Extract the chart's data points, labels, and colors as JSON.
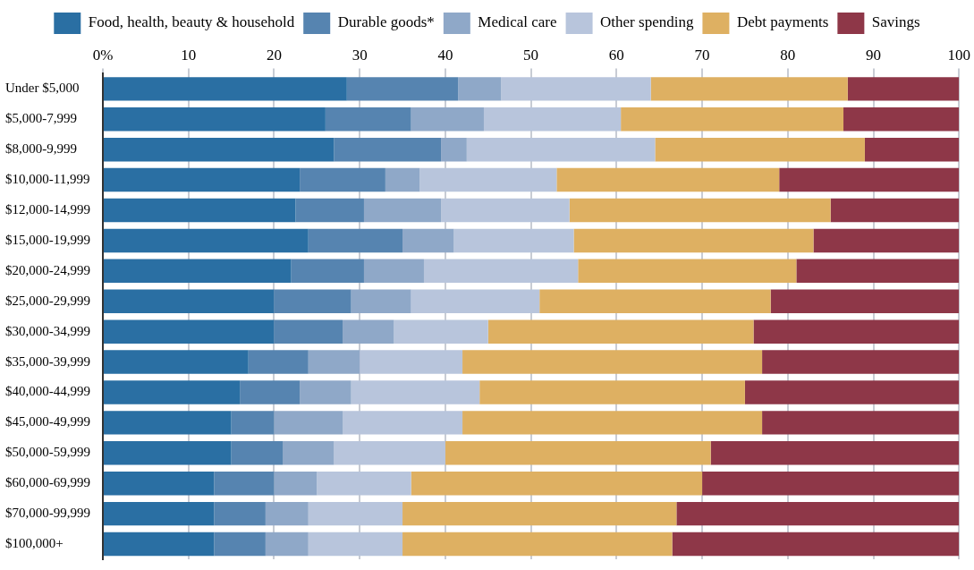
{
  "chart_data": {
    "type": "bar",
    "orientation": "horizontal",
    "stacked": true,
    "categories": [
      "Under $5,000",
      "$5,000-7,999",
      "$8,000-9,999",
      "$10,000-11,999",
      "$12,000-14,999",
      "$15,000-19,999",
      "$20,000-24,999",
      "$25,000-29,999",
      "$30,000-34,999",
      "$35,000-39,999",
      "$40,000-44,999",
      "$45,000-49,999",
      "$50,000-59,999",
      "$60,000-69,999",
      "$70,000-99,999",
      "$100,000+"
    ],
    "series": [
      {
        "name": "Food, health, beauty & household",
        "color": "#2a6fa3",
        "values": [
          28.5,
          26,
          27,
          23,
          22.5,
          24,
          22,
          20,
          20,
          17,
          16,
          15,
          15,
          13,
          13,
          13
        ]
      },
      {
        "name": "Durable goods*",
        "color": "#5684b0",
        "values": [
          13,
          10,
          12.5,
          10,
          8,
          11,
          8.5,
          9,
          8,
          7,
          7,
          5,
          6,
          7,
          6,
          6
        ]
      },
      {
        "name": "Medical care",
        "color": "#8fa8c8",
        "values": [
          5,
          8.5,
          3,
          4,
          9,
          6,
          7,
          7,
          6,
          6,
          6,
          8,
          6,
          5,
          5,
          5
        ]
      },
      {
        "name": "Other spending",
        "color": "#b8c5dc",
        "values": [
          17.5,
          16,
          22,
          16,
          15,
          14,
          18,
          15,
          11,
          12,
          15,
          14,
          13,
          11,
          11,
          11
        ]
      },
      {
        "name": "Debt payments",
        "color": "#deb062",
        "values": [
          23,
          26,
          24.5,
          26,
          30.5,
          28,
          25.5,
          27,
          31,
          35,
          31,
          35,
          31,
          34,
          32,
          31.5
        ]
      },
      {
        "name": "Savings",
        "color": "#8e3748",
        "values": [
          13,
          13.5,
          11,
          21,
          15,
          17,
          19,
          22,
          24,
          23,
          25,
          23,
          29,
          30,
          33,
          33.5
        ]
      }
    ],
    "xlim": [
      0,
      100
    ],
    "xticks": [
      {
        "value": 0,
        "label": "0%"
      },
      10,
      20,
      30,
      40,
      50,
      60,
      70,
      80,
      90,
      100
    ],
    "grid": "x",
    "legend": "top"
  }
}
